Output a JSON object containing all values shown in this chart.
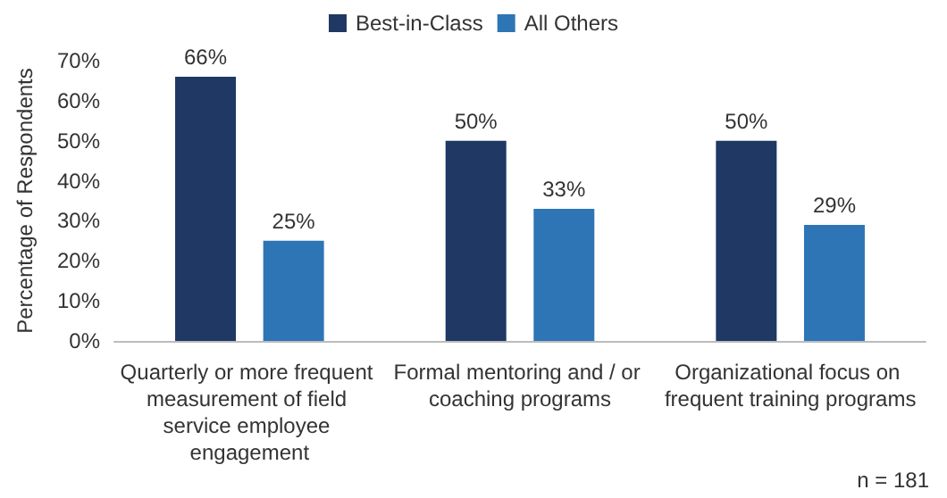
{
  "chart_data": {
    "type": "bar",
    "ylabel": "Percentage of Respondents",
    "categories": [
      "Quarterly or more frequent measurement of field service employee engagement",
      "Formal mentoring and / or coaching programs",
      "Organizational focus on frequent training programs"
    ],
    "series": [
      {
        "name": "Best-in-Class",
        "color": "#1f3864",
        "values": [
          66,
          50,
          50
        ],
        "value_labels": [
          "66%",
          "50%",
          "50%"
        ]
      },
      {
        "name": "All Others",
        "color": "#2e75b6",
        "values": [
          25,
          33,
          29
        ],
        "value_labels": [
          "25%",
          "33%",
          "29%"
        ]
      }
    ],
    "ylim": [
      0,
      70
    ],
    "yticks": [
      {
        "value": 0,
        "label": "0%"
      },
      {
        "value": 10,
        "label": "10%"
      },
      {
        "value": 20,
        "label": "20%"
      },
      {
        "value": 30,
        "label": "30%"
      },
      {
        "value": 40,
        "label": "40%"
      },
      {
        "value": 50,
        "label": "50%"
      },
      {
        "value": 60,
        "label": "60%"
      },
      {
        "value": 70,
        "label": "70%"
      }
    ],
    "grid": false,
    "legend": "top",
    "annotations": [
      "n = 181"
    ]
  }
}
